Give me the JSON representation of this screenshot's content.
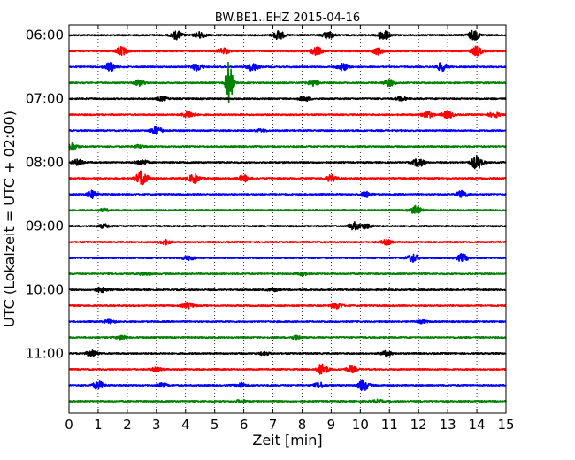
{
  "chart_data": {
    "type": "line",
    "title": "BW.BE1..EHZ 2015-04-16",
    "xlabel": "Zeit  [min]",
    "ylabel": "UTC (Lokalzeit = UTC + 02:00)",
    "xlim": [
      0,
      15
    ],
    "xticks": [
      "0",
      "1",
      "2",
      "3",
      "4",
      "5",
      "6",
      "7",
      "8",
      "9",
      "10",
      "11",
      "12",
      "13",
      "14",
      "15"
    ],
    "yticks": [
      "06:00",
      "07:00",
      "08:00",
      "09:00",
      "10:00",
      "11:00"
    ],
    "ytick_rows": [
      0,
      4,
      8,
      12,
      16,
      20
    ],
    "row_duration_min": 15,
    "grid": "vertical dotted lines at each minute",
    "trace_colors": [
      "#000000",
      "#ff0000",
      "#0000ff",
      "#008000"
    ],
    "traces": [
      {
        "start": "06:00",
        "color": "#000000",
        "events": [
          {
            "t": 3.7,
            "a": 0.45
          },
          {
            "t": 4.5,
            "a": 0.35
          },
          {
            "t": 7.2,
            "a": 0.5
          },
          {
            "t": 8.9,
            "a": 0.4
          },
          {
            "t": 10.8,
            "a": 0.6
          },
          {
            "t": 13.9,
            "a": 0.55
          }
        ]
      },
      {
        "start": "06:15",
        "color": "#ff0000",
        "events": [
          {
            "t": 1.8,
            "a": 0.45
          },
          {
            "t": 5.3,
            "a": 0.35
          },
          {
            "t": 8.5,
            "a": 0.45
          },
          {
            "t": 10.6,
            "a": 0.35
          },
          {
            "t": 14.0,
            "a": 0.5
          }
        ]
      },
      {
        "start": "06:30",
        "color": "#0000ff",
        "events": [
          {
            "t": 1.4,
            "a": 0.5
          },
          {
            "t": 4.4,
            "a": 0.4
          },
          {
            "t": 6.3,
            "a": 0.45
          },
          {
            "t": 9.4,
            "a": 0.4
          },
          {
            "t": 12.8,
            "a": 0.45
          }
        ]
      },
      {
        "start": "06:45",
        "color": "#008000",
        "events": [
          {
            "t": 5.5,
            "a": 2.6
          },
          {
            "t": 2.4,
            "a": 0.3
          },
          {
            "t": 8.4,
            "a": 0.3
          },
          {
            "t": 11.0,
            "a": 0.35
          }
        ]
      },
      {
        "start": "07:00",
        "color": "#000000",
        "events": [
          {
            "t": 3.2,
            "a": 0.2
          },
          {
            "t": 8.1,
            "a": 0.25
          },
          {
            "t": 11.4,
            "a": 0.2
          }
        ]
      },
      {
        "start": "07:15",
        "color": "#ff0000",
        "events": [
          {
            "t": 4.1,
            "a": 0.4
          },
          {
            "t": 12.3,
            "a": 0.35
          },
          {
            "t": 13.0,
            "a": 0.4
          },
          {
            "t": 14.6,
            "a": 0.3
          }
        ]
      },
      {
        "start": "07:30",
        "color": "#0000ff",
        "events": [
          {
            "t": 3.0,
            "a": 0.45
          },
          {
            "t": 6.6,
            "a": 0.15
          }
        ]
      },
      {
        "start": "07:45",
        "color": "#008000",
        "events": [
          {
            "t": 0.1,
            "a": 0.45
          },
          {
            "t": 2.4,
            "a": 0.15
          }
        ]
      },
      {
        "start": "08:00",
        "color": "#000000",
        "events": [
          {
            "t": 0.3,
            "a": 0.3
          },
          {
            "t": 2.5,
            "a": 0.3
          },
          {
            "t": 12.0,
            "a": 0.45
          },
          {
            "t": 14.0,
            "a": 0.75
          }
        ]
      },
      {
        "start": "08:15",
        "color": "#ff0000",
        "events": [
          {
            "t": 2.5,
            "a": 0.9
          },
          {
            "t": 4.3,
            "a": 0.5
          },
          {
            "t": 6.0,
            "a": 0.35
          },
          {
            "t": 9.0,
            "a": 0.35
          }
        ]
      },
      {
        "start": "08:30",
        "color": "#0000ff",
        "events": [
          {
            "t": 0.8,
            "a": 0.4
          },
          {
            "t": 10.2,
            "a": 0.3
          },
          {
            "t": 13.5,
            "a": 0.4
          }
        ]
      },
      {
        "start": "08:45",
        "color": "#008000",
        "events": [
          {
            "t": 1.2,
            "a": 0.15
          },
          {
            "t": 11.9,
            "a": 0.45
          }
        ]
      },
      {
        "start": "09:00",
        "color": "#000000",
        "events": [
          {
            "t": 1.2,
            "a": 0.2
          },
          {
            "t": 9.8,
            "a": 0.4
          },
          {
            "t": 10.2,
            "a": 0.25
          }
        ]
      },
      {
        "start": "09:15",
        "color": "#ff0000",
        "events": [
          {
            "t": 3.3,
            "a": 0.25
          },
          {
            "t": 10.9,
            "a": 0.25
          }
        ]
      },
      {
        "start": "09:30",
        "color": "#0000ff",
        "events": [
          {
            "t": 4.1,
            "a": 0.25
          },
          {
            "t": 11.8,
            "a": 0.45
          },
          {
            "t": 13.5,
            "a": 0.4
          }
        ]
      },
      {
        "start": "09:45",
        "color": "#008000",
        "events": [
          {
            "t": 2.6,
            "a": 0.15
          },
          {
            "t": 8.0,
            "a": 0.15
          }
        ]
      },
      {
        "start": "10:00",
        "color": "#000000",
        "events": [
          {
            "t": 1.1,
            "a": 0.25
          },
          {
            "t": 7.0,
            "a": 0.15
          }
        ]
      },
      {
        "start": "10:15",
        "color": "#ff0000",
        "events": [
          {
            "t": 4.1,
            "a": 0.35
          },
          {
            "t": 9.2,
            "a": 0.3
          }
        ]
      },
      {
        "start": "10:30",
        "color": "#0000ff",
        "events": [
          {
            "t": 1.4,
            "a": 0.2
          },
          {
            "t": 12.1,
            "a": 0.15
          }
        ]
      },
      {
        "start": "10:45",
        "color": "#008000",
        "events": [
          {
            "t": 1.8,
            "a": 0.2
          },
          {
            "t": 7.8,
            "a": 0.2
          }
        ]
      },
      {
        "start": "11:00",
        "color": "#000000",
        "events": [
          {
            "t": 0.8,
            "a": 0.35
          },
          {
            "t": 6.7,
            "a": 0.15
          },
          {
            "t": 10.9,
            "a": 0.25
          }
        ]
      },
      {
        "start": "11:15",
        "color": "#ff0000",
        "events": [
          {
            "t": 3.0,
            "a": 0.2
          },
          {
            "t": 8.7,
            "a": 0.6
          },
          {
            "t": 9.7,
            "a": 0.35
          }
        ]
      },
      {
        "start": "11:30",
        "color": "#0000ff",
        "events": [
          {
            "t": 1.0,
            "a": 0.45
          },
          {
            "t": 3.2,
            "a": 0.2
          },
          {
            "t": 5.9,
            "a": 0.25
          },
          {
            "t": 8.6,
            "a": 0.3
          },
          {
            "t": 10.1,
            "a": 0.6
          }
        ]
      },
      {
        "start": "11:45",
        "color": "#008000",
        "events": [
          {
            "t": 5.9,
            "a": 0.15
          },
          {
            "t": 10.6,
            "a": 0.15
          }
        ]
      }
    ]
  }
}
